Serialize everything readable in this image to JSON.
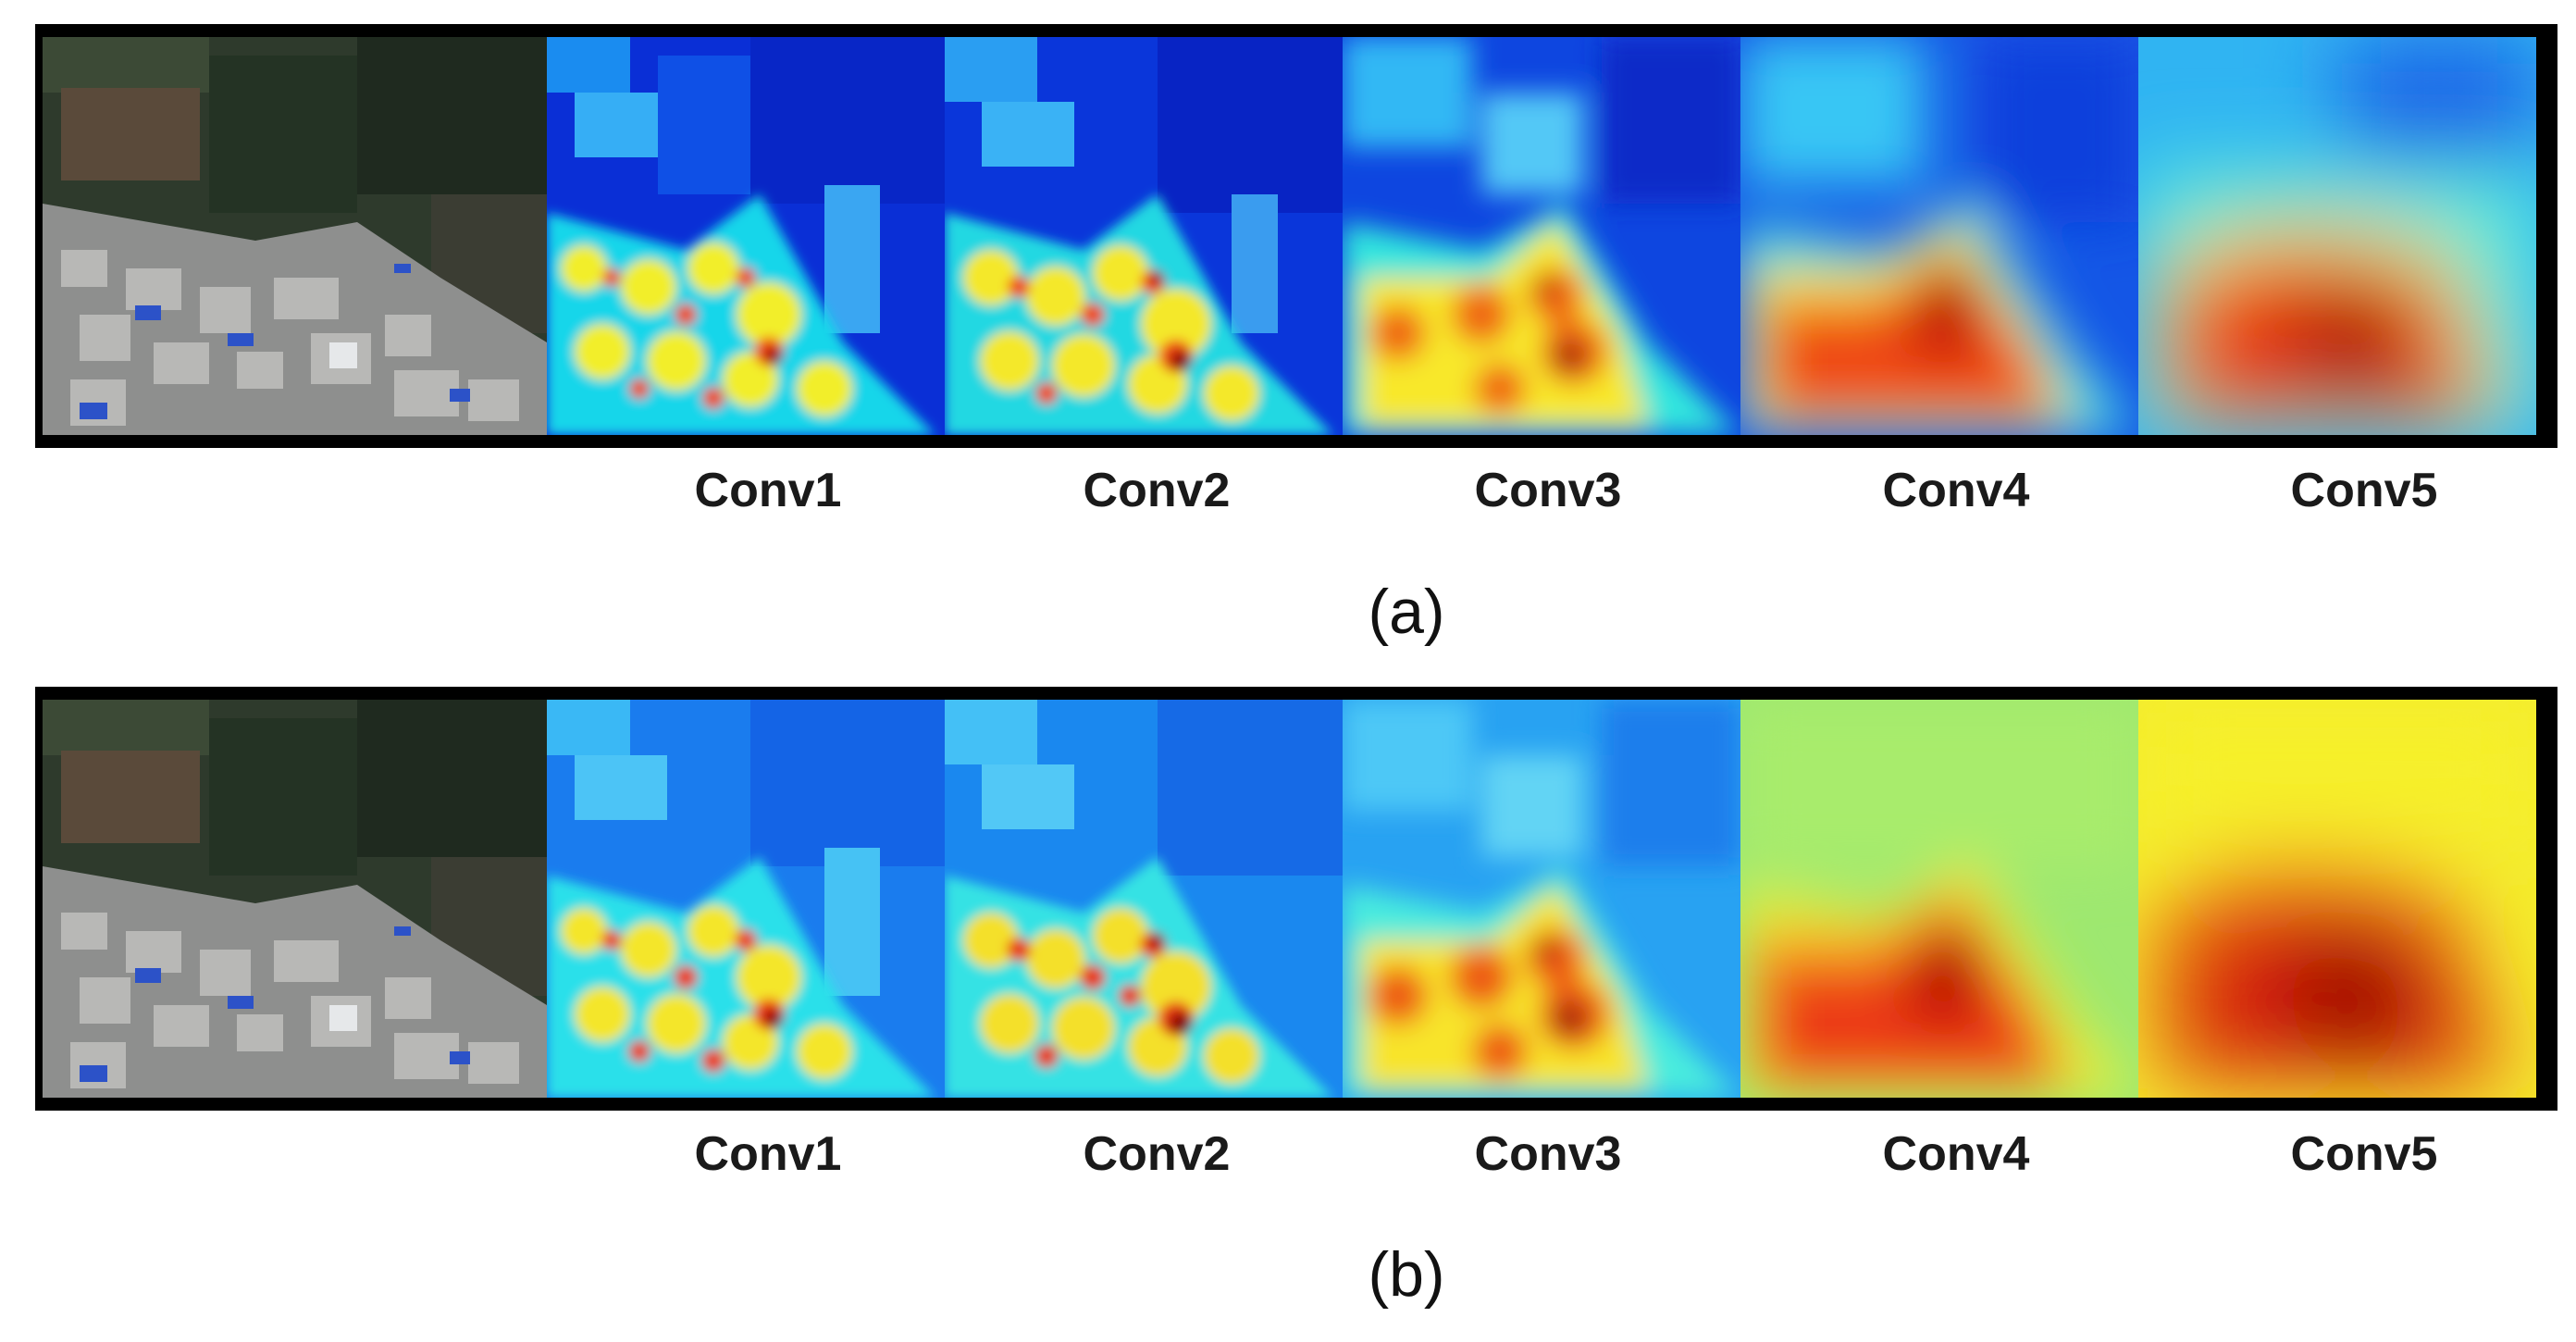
{
  "panels": [
    {
      "caption": "(a)",
      "layer_labels": [
        "Conv1",
        "Conv2",
        "Conv3",
        "Conv4",
        "Conv5"
      ]
    },
    {
      "caption": "(b)",
      "layer_labels": [
        "Conv1",
        "Conv2",
        "Conv3",
        "Conv4",
        "Conv5"
      ]
    }
  ]
}
